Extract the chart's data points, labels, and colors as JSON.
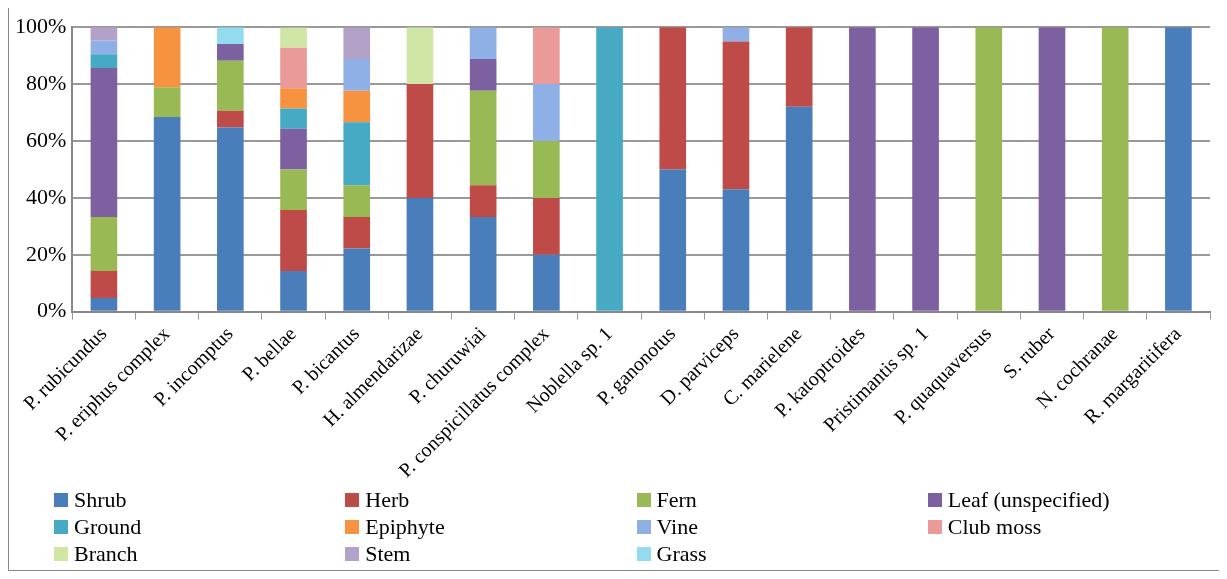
{
  "chart_data": {
    "type": "bar",
    "stacked": true,
    "categories": [
      "P. rubicundus",
      "P. eriphus complex",
      "P. incomptus",
      "P. bellae",
      "P. bicantus",
      "H. almendarizae",
      "P. churuwiai",
      "P. conspicillatus complex",
      "Noblella sp. 1",
      "P. ganonotus",
      "D. parviceps",
      "C. marielene",
      "P. katoptroides",
      "Pristimantis sp. 1",
      "P. quaquaversus",
      "S. ruber",
      "N. cochranae",
      "R. margaritifera"
    ],
    "series": [
      {
        "name": "Shrub",
        "color": "#4a7ebb",
        "values": [
          4.8,
          68.4,
          64.7,
          14.3,
          22.2,
          40,
          33.3,
          20,
          null,
          50,
          43,
          72,
          null,
          null,
          null,
          null,
          null,
          100
        ]
      },
      {
        "name": "Herb",
        "color": "#be4b48",
        "values": [
          9.5,
          null,
          5.9,
          21.4,
          11.1,
          40,
          11.1,
          20,
          null,
          50,
          52,
          28,
          null,
          null,
          null,
          null,
          null,
          null
        ]
      },
      {
        "name": "Fern",
        "color": "#98b954",
        "values": [
          19.0,
          10.5,
          17.6,
          14.3,
          11.1,
          null,
          33.3,
          20,
          null,
          null,
          null,
          null,
          null,
          null,
          100,
          null,
          100,
          null
        ]
      },
      {
        "name": "Leaf (unspecified)",
        "color": "#7d60a0",
        "values": [
          52.4,
          null,
          5.9,
          14.3,
          null,
          null,
          11.1,
          null,
          null,
          null,
          null,
          null,
          100,
          100,
          null,
          100,
          null,
          null
        ]
      },
      {
        "name": "Ground",
        "color": "#46aac5",
        "values": [
          4.8,
          null,
          null,
          7.1,
          22.2,
          null,
          null,
          null,
          100,
          null,
          null,
          null,
          null,
          null,
          null,
          null,
          null,
          null
        ]
      },
      {
        "name": "Epiphyte",
        "color": "#f69240",
        "values": [
          null,
          21.1,
          null,
          7.1,
          11.1,
          null,
          null,
          null,
          null,
          null,
          null,
          null,
          null,
          null,
          null,
          null,
          null,
          null
        ]
      },
      {
        "name": "Vine",
        "color": "#8eb0e6",
        "values": [
          4.8,
          null,
          null,
          null,
          11.1,
          null,
          11.1,
          20,
          null,
          null,
          5,
          null,
          null,
          null,
          null,
          null,
          null,
          null
        ]
      },
      {
        "name": "Club moss",
        "color": "#eb9a9a",
        "values": [
          null,
          null,
          null,
          14.3,
          null,
          null,
          null,
          20,
          null,
          null,
          null,
          null,
          null,
          null,
          null,
          null,
          null,
          null
        ]
      },
      {
        "name": "Branch",
        "color": "#cfe6a4",
        "values": [
          null,
          null,
          null,
          7.1,
          null,
          20,
          null,
          null,
          null,
          null,
          null,
          null,
          null,
          null,
          null,
          null,
          null,
          null
        ]
      },
      {
        "name": "Stem",
        "color": "#b3a2c7",
        "values": [
          4.7,
          null,
          null,
          null,
          11.1,
          null,
          null,
          null,
          null,
          null,
          null,
          null,
          null,
          null,
          null,
          null,
          null,
          null
        ]
      },
      {
        "name": "Grass",
        "color": "#93dcf0",
        "values": [
          null,
          null,
          5.9,
          null,
          null,
          null,
          null,
          null,
          null,
          null,
          null,
          null,
          null,
          null,
          null,
          null,
          null,
          null
        ]
      }
    ],
    "ylim": [
      0,
      100
    ],
    "yticks": [
      {
        "value": 0,
        "label": "0%"
      },
      {
        "value": 20,
        "label": "20%"
      },
      {
        "value": 40,
        "label": "40%"
      },
      {
        "value": 60,
        "label": "60%"
      },
      {
        "value": 80,
        "label": "80%"
      },
      {
        "value": 100,
        "label": "100%"
      }
    ],
    "grid": "y",
    "legend": "bottom"
  }
}
